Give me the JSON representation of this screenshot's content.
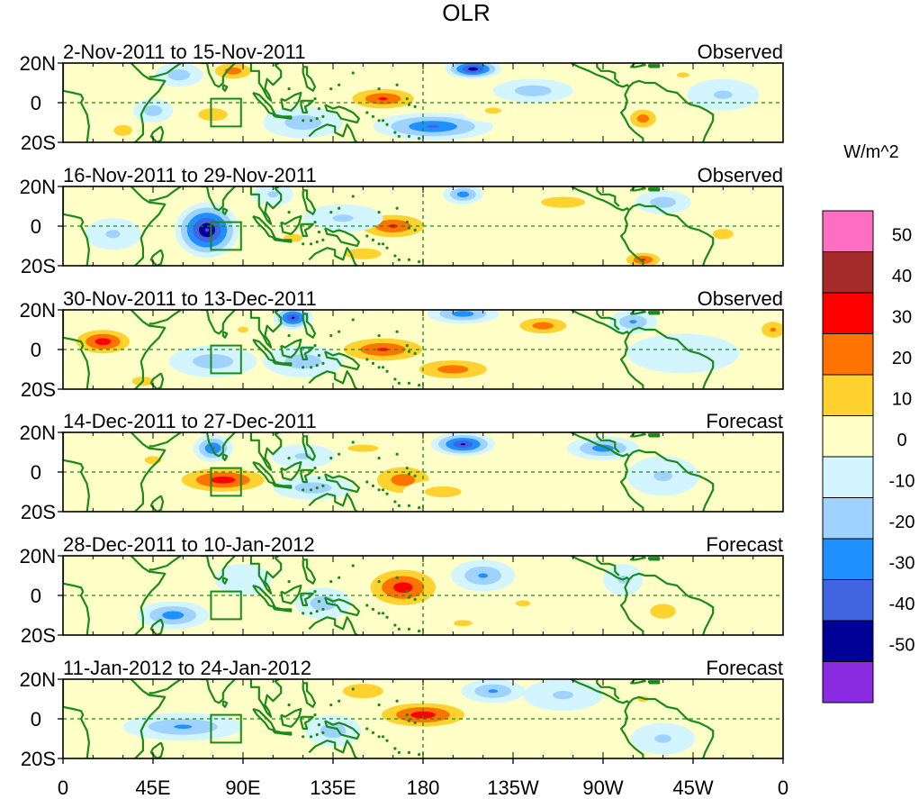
{
  "chart_data": {
    "type": "heatmap",
    "title": "OLR",
    "units": "W/m^2",
    "x_ticks": [
      "0",
      "45E",
      "90E",
      "135E",
      "180",
      "135W",
      "90W",
      "45W",
      "0"
    ],
    "y_ticks": [
      "20N",
      "0",
      "20S"
    ],
    "lon_range": [
      0,
      360
    ],
    "lat_range": [
      -20,
      20
    ],
    "colorbar": {
      "levels": [
        "50",
        "40",
        "30",
        "20",
        "10",
        "0",
        "-10",
        "-20",
        "-30",
        "-40",
        "-50"
      ],
      "colors": [
        "#ff6ec0",
        "#a52a2a",
        "#ff0000",
        "#ff7300",
        "#ffd230",
        "#ffffc8",
        "#d2f5ff",
        "#a0d2ff",
        "#1e90ff",
        "#4164e1",
        "#000096",
        "#8a2be2"
      ]
    },
    "panels": [
      {
        "label": "2-Nov-2011 to 15-Nov-2011",
        "status": "Observed",
        "anomalies": [
          [
            30,
            -14,
            10,
            6,
            1.5
          ],
          [
            85,
            16,
            14,
            6,
            2.5
          ],
          [
            75,
            -6,
            16,
            7,
            1.5
          ],
          [
            160,
            2,
            22,
            7,
            3
          ],
          [
            205,
            17,
            14,
            5,
            -4.5
          ],
          [
            185,
            -12,
            30,
            7,
            -3
          ],
          [
            235,
            6,
            20,
            6,
            -1.5
          ],
          [
            290,
            -8,
            10,
            7,
            2.5
          ],
          [
            330,
            4,
            18,
            8,
            -1
          ],
          [
            58,
            14,
            12,
            6,
            -1.5
          ],
          [
            120,
            -10,
            20,
            8,
            -1.5
          ],
          [
            215,
            -4,
            16,
            6,
            1
          ],
          [
            310,
            14,
            12,
            5,
            1
          ],
          [
            45,
            -4,
            10,
            6,
            -1.5
          ]
        ]
      },
      {
        "label": "16-Nov-2011 to 29-Nov-2011",
        "status": "Observed",
        "anomalies": [
          [
            72,
            -2,
            16,
            14,
            -5
          ],
          [
            165,
            0,
            22,
            8,
            3
          ],
          [
            200,
            16,
            10,
            5,
            -2.5
          ],
          [
            290,
            -17,
            12,
            5,
            3
          ],
          [
            140,
            4,
            20,
            7,
            -1
          ],
          [
            150,
            -14,
            20,
            6,
            1.5
          ],
          [
            115,
            -6,
            18,
            8,
            1
          ],
          [
            250,
            12,
            24,
            6,
            1.5
          ],
          [
            25,
            -4,
            14,
            8,
            -1
          ],
          [
            300,
            12,
            14,
            6,
            -1.5
          ],
          [
            330,
            -4,
            20,
            10,
            1
          ],
          [
            105,
            16,
            10,
            6,
            -1
          ]
        ]
      },
      {
        "label": "30-Nov-2011 to 13-Dec-2011",
        "status": "Observed",
        "anomalies": [
          [
            20,
            4,
            18,
            8,
            3.5
          ],
          [
            160,
            0,
            28,
            8,
            3
          ],
          [
            195,
            -10,
            26,
            7,
            2.5
          ],
          [
            115,
            16,
            10,
            6,
            -4
          ],
          [
            200,
            18,
            18,
            5,
            -2.5
          ],
          [
            240,
            12,
            18,
            6,
            2.5
          ],
          [
            285,
            14,
            12,
            6,
            -2
          ],
          [
            355,
            10,
            10,
            7,
            2
          ],
          [
            75,
            -6,
            22,
            8,
            -1.5
          ],
          [
            120,
            -6,
            20,
            8,
            -1.5
          ],
          [
            40,
            -16,
            12,
            5,
            1.5
          ],
          [
            310,
            -2,
            28,
            10,
            -0.8
          ],
          [
            90,
            10,
            10,
            6,
            1
          ]
        ]
      },
      {
        "label": "14-Dec-2011 to 27-Dec-2011",
        "status": "Forecast",
        "anomalies": [
          [
            80,
            -4,
            28,
            8,
            3.5
          ],
          [
            75,
            12,
            10,
            7,
            -3
          ],
          [
            200,
            14,
            16,
            6,
            -4
          ],
          [
            270,
            12,
            18,
            6,
            -2.5
          ],
          [
            170,
            -4,
            20,
            10,
            2.5
          ],
          [
            190,
            -10,
            20,
            6,
            1.5
          ],
          [
            125,
            -8,
            20,
            6,
            -1.5
          ],
          [
            150,
            12,
            30,
            7,
            1
          ],
          [
            120,
            8,
            16,
            6,
            -1
          ],
          [
            300,
            -2,
            18,
            10,
            -1
          ],
          [
            45,
            6,
            16,
            8,
            1
          ]
        ]
      },
      {
        "label": "28-Dec-2011 to 10-Jan-2012",
        "status": "Forecast",
        "anomalies": [
          [
            170,
            4,
            22,
            12,
            3.5
          ],
          [
            55,
            -10,
            18,
            7,
            -2.5
          ],
          [
            210,
            10,
            16,
            8,
            -2
          ],
          [
            130,
            -4,
            14,
            8,
            -1.5
          ],
          [
            300,
            -8,
            14,
            8,
            1.5
          ],
          [
            280,
            8,
            10,
            8,
            -1
          ],
          [
            230,
            -4,
            14,
            6,
            1
          ],
          [
            90,
            8,
            14,
            8,
            -0.8
          ],
          [
            200,
            -14,
            18,
            6,
            1
          ]
        ]
      },
      {
        "label": "11-Jan-2012 to 24-Jan-2012",
        "status": "Forecast",
        "anomalies": [
          [
            180,
            2,
            28,
            8,
            3.5
          ],
          [
            60,
            -4,
            30,
            7,
            -2
          ],
          [
            135,
            -6,
            14,
            8,
            -1.5
          ],
          [
            215,
            14,
            16,
            6,
            -2
          ],
          [
            250,
            12,
            20,
            8,
            -1
          ],
          [
            150,
            14,
            22,
            8,
            1.5
          ],
          [
            300,
            -10,
            16,
            8,
            -1
          ],
          [
            290,
            10,
            10,
            6,
            1
          ]
        ]
      }
    ]
  }
}
